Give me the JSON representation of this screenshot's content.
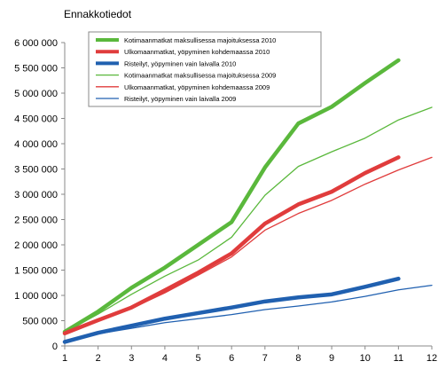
{
  "chart_data": {
    "type": "line",
    "title": "Ennakkotiedot",
    "xlabel": "",
    "ylabel": "",
    "x": [
      1,
      2,
      3,
      4,
      5,
      6,
      7,
      8,
      9,
      10,
      11,
      12
    ],
    "x_ticks": [
      "1",
      "2",
      "3",
      "4",
      "5",
      "6",
      "7",
      "8",
      "9",
      "10",
      "11",
      "12"
    ],
    "xlim": [
      1,
      12
    ],
    "ylim": [
      0,
      6000000
    ],
    "y_ticks": [
      0,
      500000,
      1000000,
      1500000,
      2000000,
      2500000,
      3000000,
      3500000,
      4000000,
      4500000,
      5000000,
      5500000,
      6000000
    ],
    "y_tick_labels": [
      "0",
      "500 000",
      "1 000 000",
      "1 500 000",
      "2 000 000",
      "2 500 000",
      "3 000 000",
      "3 500 000",
      "4 000 000",
      "4 500 000",
      "5 000 000",
      "5 500 000",
      "6 000 000"
    ],
    "grid": false,
    "legend_position": "top-left",
    "series": [
      {
        "name": "Kotimaanmatkat maksullisessa majoituksessa 2010",
        "color": "#5ab83c",
        "line_weight": "thick",
        "values": [
          280000,
          680000,
          1150000,
          1550000,
          2000000,
          2450000,
          3530000,
          4400000,
          4730000,
          5200000,
          5650000,
          null
        ]
      },
      {
        "name": "Ulkomaanmatkat, yöpyminen kohdemaassa 2010",
        "color": "#e03c3c",
        "line_weight": "thick",
        "values": [
          250000,
          510000,
          760000,
          1100000,
          1450000,
          1830000,
          2420000,
          2800000,
          3050000,
          3420000,
          3730000,
          null
        ]
      },
      {
        "name": "Risteilyt, yöpyminen vain laivalla 2010",
        "color": "#2060b0",
        "line_weight": "thick",
        "values": [
          80000,
          260000,
          400000,
          540000,
          650000,
          760000,
          880000,
          960000,
          1020000,
          1170000,
          1330000,
          null
        ]
      },
      {
        "name": "Kotimaanmatkat maksullisessa majoituksessa 2009",
        "color": "#5ab83c",
        "line_weight": "thin",
        "values": [
          270000,
          630000,
          1020000,
          1380000,
          1700000,
          2150000,
          2980000,
          3550000,
          3840000,
          4110000,
          4470000,
          4720000
        ]
      },
      {
        "name": "Ulkomaanmatkat, yöpyminen kohdemaassa 2009",
        "color": "#e03c3c",
        "line_weight": "thin",
        "values": [
          240000,
          490000,
          740000,
          1050000,
          1400000,
          1760000,
          2290000,
          2620000,
          2880000,
          3200000,
          3480000,
          3730000
        ]
      },
      {
        "name": "Risteilyt, yöpyminen vain laivalla 2009",
        "color": "#2060b0",
        "line_weight": "thin",
        "values": [
          80000,
          240000,
          350000,
          460000,
          540000,
          620000,
          720000,
          790000,
          870000,
          980000,
          1110000,
          1200000
        ]
      }
    ]
  }
}
